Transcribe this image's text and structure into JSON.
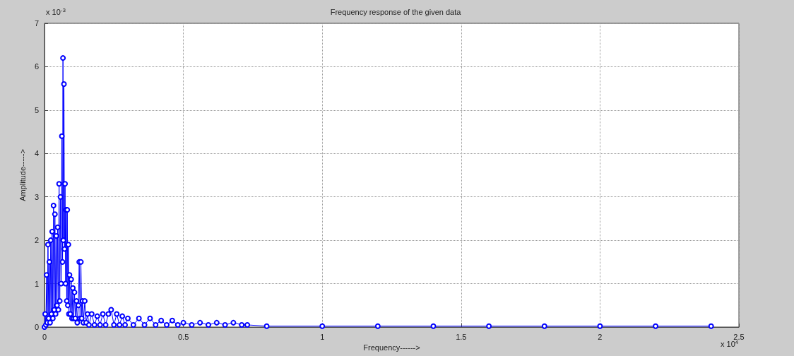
{
  "chart_data": {
    "type": "line",
    "title": "Frequency response of the given data",
    "xlabel": "Frequency------>",
    "ylabel": "Amplitude----->",
    "annotations": [
      "x 10$^{-3}$",
      "x 10$^{4}$"
    ],
    "x": [
      0,
      0.0025,
      0.005,
      0.0075,
      0.01,
      0.0125,
      0.015,
      0.0175,
      0.02,
      0.0225,
      0.025,
      0.0275,
      0.03,
      0.0325,
      0.035,
      0.0375,
      0.04,
      0.0425,
      0.045,
      0.0475,
      0.05,
      0.0525,
      0.055,
      0.0575,
      0.06,
      0.0625,
      0.065,
      0.0665,
      0.068,
      0.07,
      0.072,
      0.074,
      0.076,
      0.078,
      0.08,
      0.082,
      0.084,
      0.086,
      0.088,
      0.09,
      0.093,
      0.096,
      0.099,
      0.102,
      0.105,
      0.108,
      0.111,
      0.115,
      0.118,
      0.122,
      0.125,
      0.128,
      0.131,
      0.134,
      0.137,
      0.14,
      0.145,
      0.15,
      0.155,
      0.16,
      0.17,
      0.18,
      0.19,
      0.2,
      0.21,
      0.22,
      0.23,
      0.24,
      0.25,
      0.26,
      0.27,
      0.28,
      0.29,
      0.3,
      0.32,
      0.34,
      0.36,
      0.38,
      0.4,
      0.42,
      0.44,
      0.46,
      0.48,
      0.5,
      0.53,
      0.56,
      0.59,
      0.62,
      0.65,
      0.68,
      0.71,
      0.73,
      0.8,
      1,
      1.2,
      1.4,
      1.6,
      1.8,
      2,
      2.2,
      2.4
    ],
    "series": [
      {
        "color": "#0000ff",
        "values": [
          0,
          0.3,
          0.05,
          1.2,
          0.1,
          1.9,
          0.2,
          1.5,
          0.1,
          2,
          0.3,
          2.2,
          0.2,
          2.8,
          0.4,
          2.6,
          0.3,
          2.1,
          0.5,
          2.3,
          0.4,
          3.3,
          0.6,
          3,
          1,
          4.4,
          1.5,
          6.2,
          2,
          5.6,
          1.8,
          3.3,
          1,
          2.7,
          0.6,
          2.7,
          0.5,
          1.9,
          0.3,
          1.2,
          0.3,
          1.1,
          0.2,
          0.9,
          0.2,
          0.8,
          0.2,
          0.6,
          0.1,
          0.5,
          1.5,
          0.2,
          1.5,
          0.2,
          0.6,
          0.1,
          0.6,
          0.1,
          0.3,
          0.05,
          0.3,
          0.05,
          0.25,
          0.05,
          0.3,
          0.05,
          0.3,
          0.4,
          0.05,
          0.3,
          0.05,
          0.25,
          0.05,
          0.2,
          0.05,
          0.2,
          0.05,
          0.2,
          0.05,
          0.15,
          0.05,
          0.15,
          0.05,
          0.1,
          0.05,
          0.1,
          0.05,
          0.1,
          0.05,
          0.1,
          0.05,
          0.05,
          0.02,
          0.02,
          0.02,
          0.02,
          0.02,
          0.02,
          0.02,
          0.02,
          0.02
        ]
      }
    ],
    "xlim": [
      0,
      2.5
    ],
    "xticks": [
      0,
      0.5,
      1,
      1.5,
      2,
      2.5
    ],
    "ylim": [
      0,
      7
    ],
    "yticks": [
      0,
      1,
      2,
      3,
      4,
      5,
      6,
      7
    ],
    "grid": true,
    "marker": "circle",
    "line_style": "solid"
  }
}
